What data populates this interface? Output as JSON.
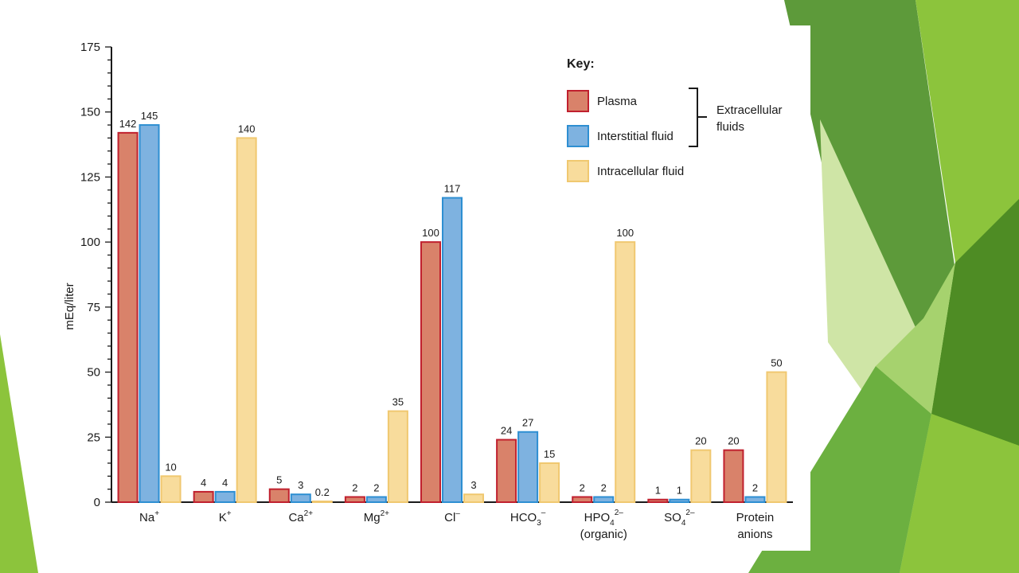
{
  "chart_data": {
    "type": "bar",
    "ylabel": "mEq/liter",
    "ylim": [
      0,
      175
    ],
    "yticks": [
      0,
      25,
      50,
      75,
      100,
      125,
      150,
      175
    ],
    "categories": [
      {
        "base": "Na",
        "sup": "+",
        "sub": "",
        "line2": ""
      },
      {
        "base": "K",
        "sup": "+",
        "sub": "",
        "line2": ""
      },
      {
        "base": "Ca",
        "sup": "2+",
        "sub": "",
        "line2": ""
      },
      {
        "base": "Mg",
        "sup": "2+",
        "sub": "",
        "line2": ""
      },
      {
        "base": "Cl",
        "sup": "–",
        "sub": "",
        "line2": ""
      },
      {
        "base": "HCO",
        "sup": "–",
        "sub": "3",
        "line2": ""
      },
      {
        "base": "HPO",
        "sup": "2–",
        "sub": "4",
        "line2": "(organic)"
      },
      {
        "base": "SO",
        "sup": "2–",
        "sub": "4",
        "line2": ""
      },
      {
        "base": "Protein",
        "sup": "",
        "sub": "",
        "line2": "anions"
      }
    ],
    "series": [
      {
        "name": "Plasma",
        "values": [
          142,
          4,
          5,
          2,
          100,
          24,
          2,
          1,
          20
        ],
        "labels": [
          "142",
          "4",
          "5",
          "2",
          "100",
          "24",
          "2",
          "1",
          "20"
        ]
      },
      {
        "name": "Interstitial fluid",
        "values": [
          145,
          4,
          3,
          2,
          117,
          27,
          2,
          1,
          2
        ],
        "labels": [
          "145",
          "4",
          "3",
          "2",
          "117",
          "27",
          "2",
          "1",
          "2"
        ]
      },
      {
        "name": "Intracellular fluid",
        "values": [
          10,
          140,
          0.2,
          35,
          3,
          15,
          100,
          20,
          50
        ],
        "labels": [
          "10",
          "140",
          "0.2",
          "35",
          "3",
          "15",
          "100",
          "20",
          "50"
        ]
      }
    ],
    "legend": {
      "title": "Key:",
      "group_label_lines": [
        "Extracellular",
        "fluids"
      ],
      "placement": "top-right"
    },
    "colors": {
      "plasma_fill": "#d9826a",
      "plasma_stroke": "#c0202e",
      "interstitial_fill": "#7eb2e0",
      "interstitial_stroke": "#2e8fd2",
      "intracellular_fill": "#f8dc9c",
      "intracellular_stroke": "#f0c870"
    }
  }
}
